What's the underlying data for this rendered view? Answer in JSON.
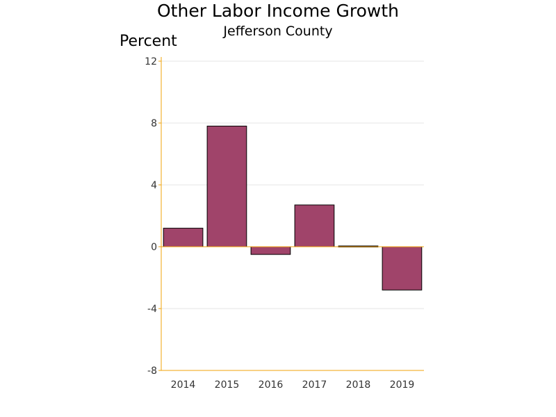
{
  "chart_data": {
    "type": "bar",
    "title": "Other Labor Income Growth",
    "subtitle": "Jefferson County",
    "ylabel": "Percent",
    "xlabel": "",
    "categories": [
      "2014",
      "2015",
      "2016",
      "2017",
      "2018",
      "2019"
    ],
    "values": [
      1.2,
      7.8,
      -0.5,
      2.7,
      0.05,
      -2.8
    ],
    "ylim": [
      -8,
      12
    ],
    "yticks": [
      12,
      8,
      4,
      0,
      -4,
      -8
    ],
    "grid": true,
    "legend": "none",
    "colors": {
      "bar": "#a0446a",
      "bar_outline": "#000000",
      "axis": "#f0a30a",
      "grid": "#e4e4e4"
    }
  }
}
